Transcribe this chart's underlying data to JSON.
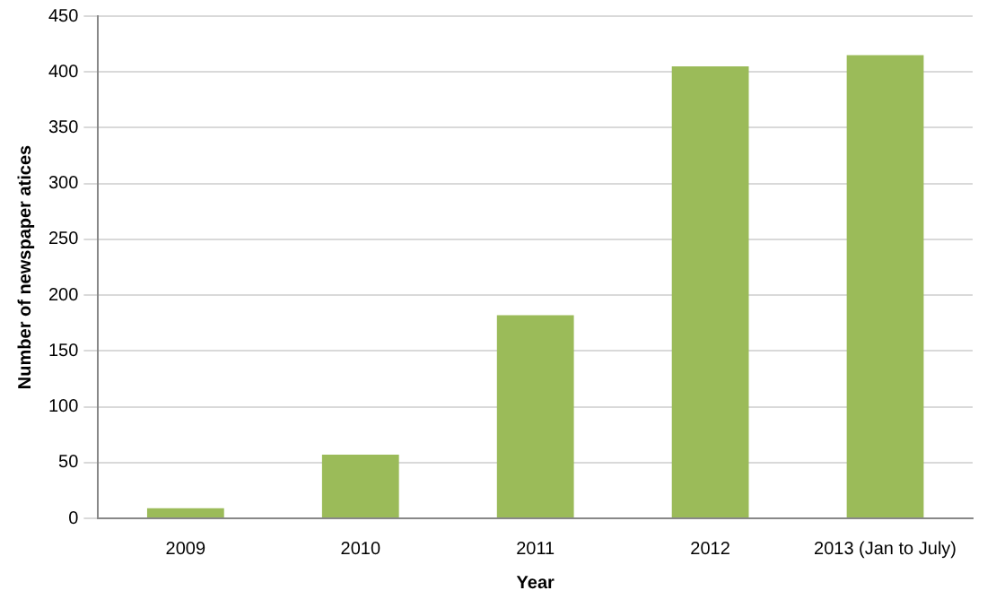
{
  "chart_data": {
    "type": "bar",
    "xlabel": "Year",
    "ylabel": "Number of newspaper atices",
    "categories": [
      "2009",
      "2010",
      "2011",
      "2012",
      "2013 (Jan to July)"
    ],
    "values": [
      9,
      57,
      182,
      405,
      415
    ],
    "color": "#9bbb59",
    "ylim": [
      0,
      450
    ],
    "yticks": [
      0,
      50,
      100,
      150,
      200,
      250,
      300,
      350,
      400,
      450
    ],
    "grid": "y",
    "legend": false
  }
}
